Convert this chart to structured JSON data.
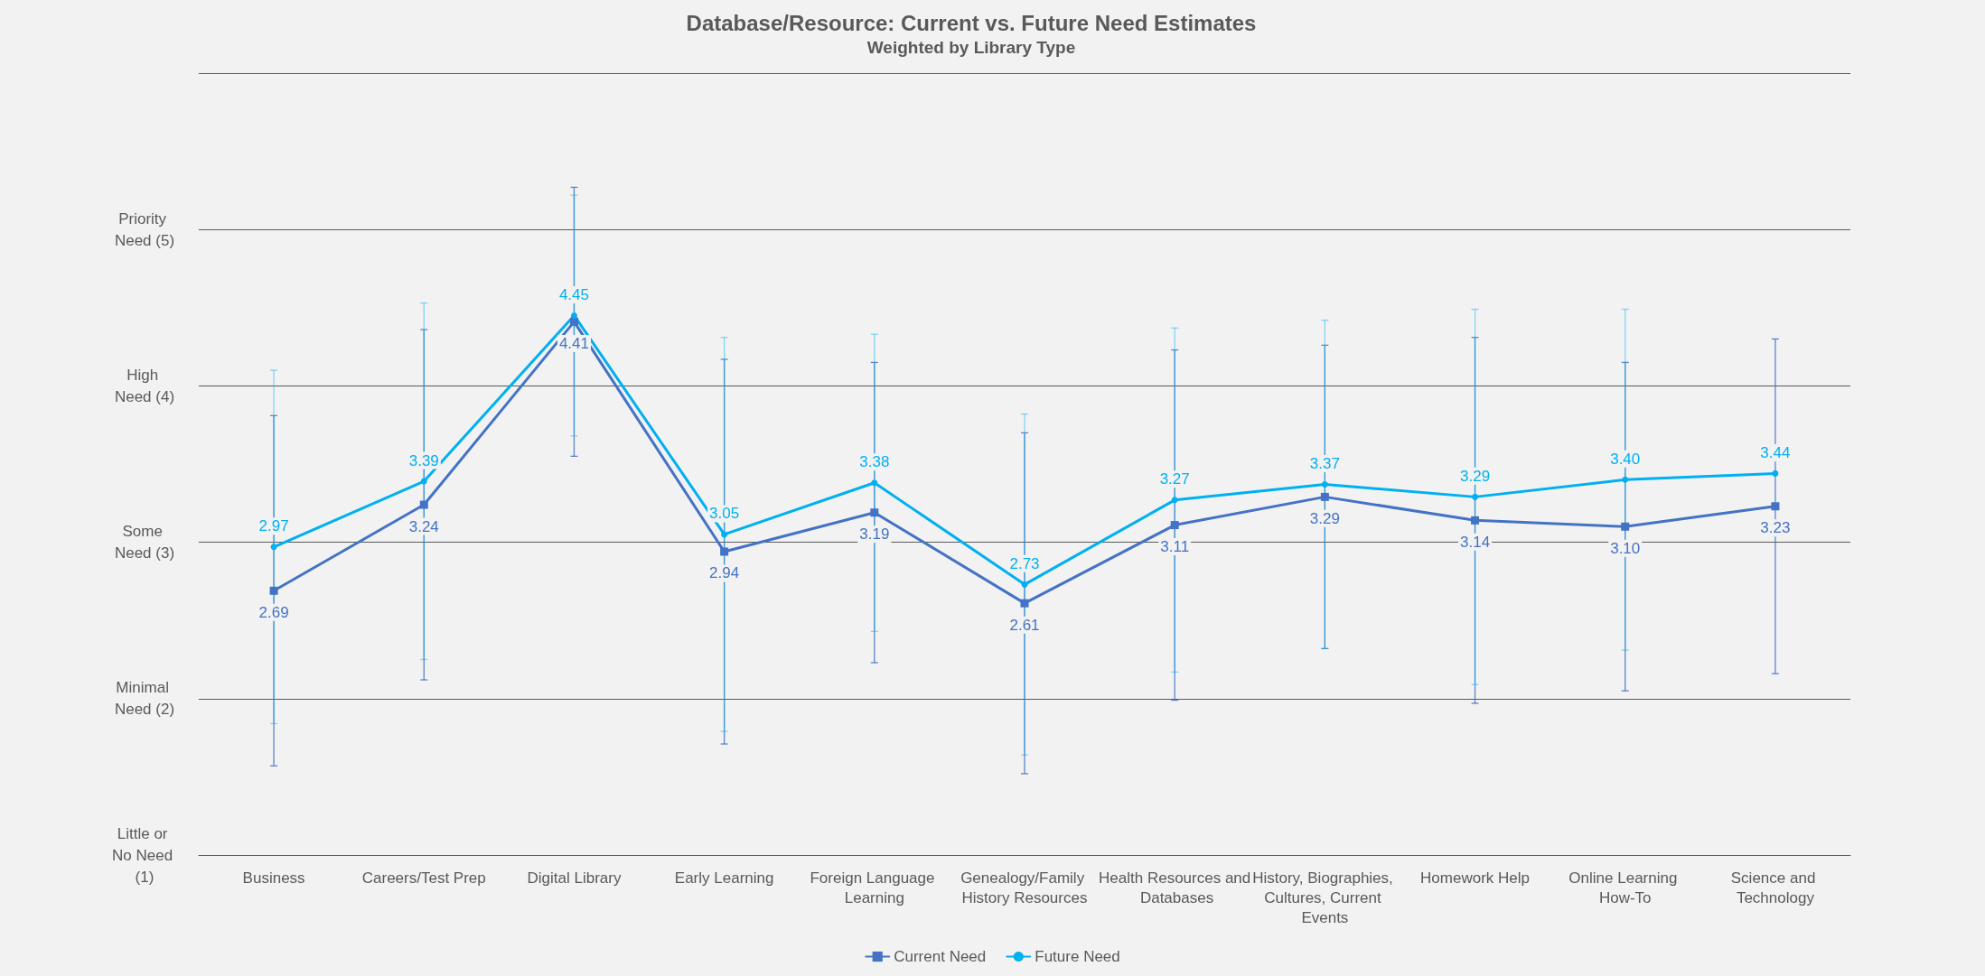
{
  "chart_data": {
    "type": "line",
    "title": "Database/Resource: Current vs. Future Need Estimates",
    "subtitle": "Weighted by Library Type",
    "categories": [
      "Business",
      "Careers/Test Prep",
      "Digital Library",
      "Early Learning",
      "Foreign Language Learning",
      "Genealogy/Family History Resources",
      "Health Resources and Databases",
      "History, Biographies, Cultures, Current Events",
      "Homework Help",
      "Online Learning How-To",
      "Science and Technology"
    ],
    "series": [
      {
        "name": "Current Need",
        "color": "#4472c4",
        "marker": "square",
        "values": [
          2.69,
          3.24,
          4.41,
          2.94,
          3.19,
          2.61,
          3.11,
          3.29,
          3.14,
          3.1,
          3.23
        ],
        "value_labels": [
          "2.69",
          "3.24",
          "4.41",
          "2.94",
          "3.19",
          "2.61",
          "3.11",
          "3.29",
          "3.14",
          "3.10",
          "3.23"
        ],
        "errors": [
          1.12,
          1.12,
          0.86,
          1.23,
          0.96,
          1.09,
          1.12,
          0.97,
          1.17,
          1.05,
          1.07
        ]
      },
      {
        "name": "Future Need",
        "color": "#00b0f0",
        "marker": "circle",
        "values": [
          2.97,
          3.39,
          4.45,
          3.05,
          3.38,
          2.73,
          3.27,
          3.37,
          3.29,
          3.4,
          3.44
        ],
        "value_labels": [
          "2.97",
          "3.39",
          "4.45",
          "3.05",
          "3.38",
          "2.73",
          "3.27",
          "3.37",
          "3.29",
          "3.40",
          "3.44"
        ],
        "errors": [
          1.13,
          1.14,
          0.77,
          1.26,
          0.95,
          1.09,
          1.1,
          1.05,
          1.2,
          1.09,
          null
        ]
      }
    ],
    "ylim": [
      1,
      6
    ],
    "yticks": [
      {
        "value": 1,
        "label": "Little or No Need (1)"
      },
      {
        "value": 2,
        "label": "Minimal Need (2)"
      },
      {
        "value": 3,
        "label": "Some Need (3)"
      },
      {
        "value": 4,
        "label": "High Need (4)"
      },
      {
        "value": 5,
        "label": "Priority Need (5)"
      },
      {
        "value": 6,
        "label": null
      }
    ],
    "grid": "y",
    "legend": "bottom",
    "line_style": "solid"
  }
}
